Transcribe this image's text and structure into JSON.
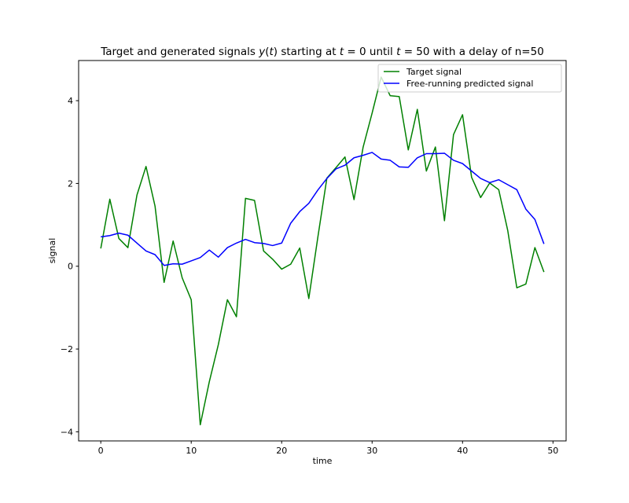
{
  "chart_data": {
    "type": "line",
    "title": "Target and generated signals y(t) starting at t = 0 until t = 50 with a delay of n=50",
    "title_parts": {
      "p1": "Target and generated signals ",
      "p2": "y",
      "p3": "(",
      "p4": "t",
      "p5": ") starting at ",
      "p6": "t",
      "p7": " = 0 until ",
      "p8": "t",
      "p9": " = 50 with a delay of n=50"
    },
    "xlabel": "time",
    "ylabel": "signal",
    "xlim": [
      -2.45,
      51.45
    ],
    "ylim": [
      -4.22,
      4.97
    ],
    "xticks": [
      0,
      10,
      20,
      30,
      40,
      50
    ],
    "yticks": [
      -4,
      -2,
      0,
      2,
      4
    ],
    "xtick_labels": [
      "0",
      "10",
      "20",
      "30",
      "40",
      "50"
    ],
    "ytick_labels": [
      "−4",
      "−2",
      "0",
      "2",
      "4"
    ],
    "grid": false,
    "legend_position": "top-right",
    "x": [
      0,
      1,
      2,
      3,
      4,
      5,
      6,
      7,
      8,
      9,
      10,
      11,
      12,
      13,
      14,
      15,
      16,
      17,
      18,
      19,
      20,
      21,
      22,
      23,
      24,
      25,
      26,
      27,
      28,
      29,
      30,
      31,
      32,
      33,
      34,
      35,
      36,
      37,
      38,
      39,
      40,
      41,
      42,
      43,
      44,
      45,
      46,
      47,
      48,
      49
    ],
    "series": [
      {
        "name": "Target signal",
        "color": "#008000",
        "values": [
          0.43,
          1.62,
          0.67,
          0.45,
          1.72,
          2.41,
          1.45,
          -0.39,
          0.61,
          -0.28,
          -0.81,
          -3.83,
          -2.79,
          -1.89,
          -0.81,
          -1.22,
          1.64,
          1.59,
          0.37,
          0.17,
          -0.07,
          0.05,
          0.44,
          -0.78,
          0.7,
          2.13,
          2.38,
          2.64,
          1.61,
          2.87,
          3.7,
          4.57,
          4.12,
          4.1,
          2.81,
          3.79,
          2.3,
          2.88,
          1.1,
          3.18,
          3.66,
          2.15,
          1.66,
          2.01,
          1.85,
          0.86,
          -0.52,
          -0.43,
          0.45,
          -0.14
        ]
      },
      {
        "name": "Free-running predicted signal",
        "color": "#0000ff",
        "values": [
          0.71,
          0.74,
          0.8,
          0.75,
          0.56,
          0.37,
          0.28,
          0.02,
          0.06,
          0.05,
          0.13,
          0.21,
          0.39,
          0.22,
          0.45,
          0.56,
          0.65,
          0.57,
          0.55,
          0.5,
          0.56,
          1.04,
          1.32,
          1.52,
          1.84,
          2.12,
          2.35,
          2.44,
          2.62,
          2.68,
          2.75,
          2.59,
          2.56,
          2.4,
          2.39,
          2.62,
          2.72,
          2.72,
          2.73,
          2.56,
          2.48,
          2.3,
          2.12,
          2.02,
          2.09,
          1.97,
          1.85,
          1.38,
          1.13,
          0.54
        ]
      }
    ]
  }
}
